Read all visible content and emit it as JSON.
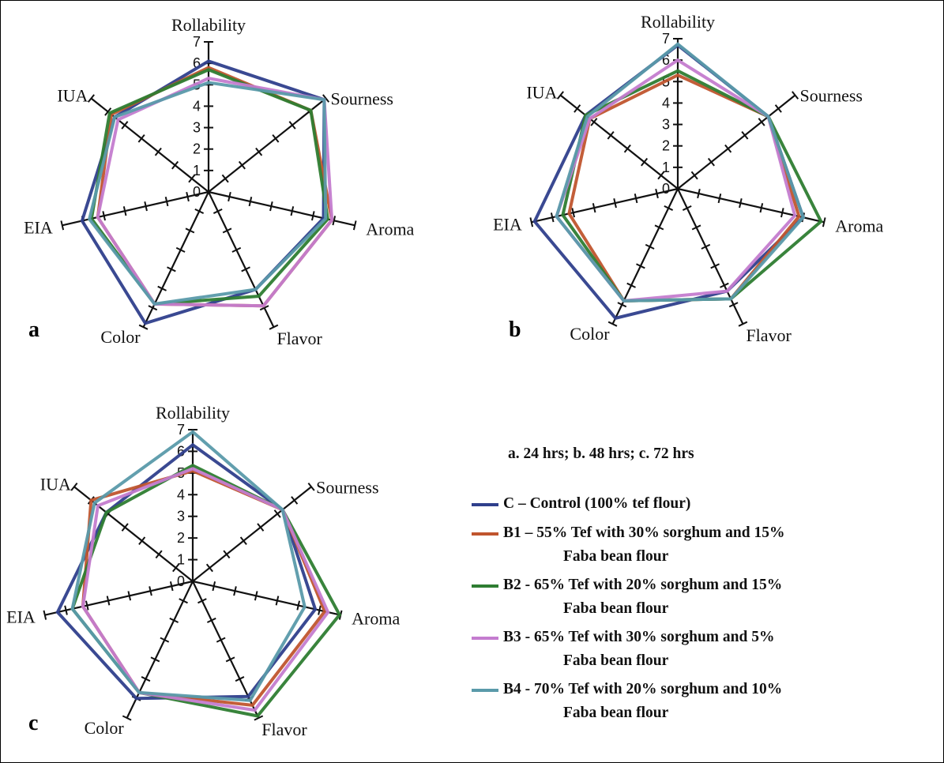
{
  "chart_data": [
    {
      "type": "radar",
      "panel_label": "a",
      "axes": [
        "Rollability",
        "Sourness",
        "Aroma",
        "Flavor",
        "Color",
        "EIA",
        "IUA"
      ],
      "rlim": [
        0,
        7
      ],
      "tick_labels": [
        "0",
        "1",
        "2",
        "3",
        "4",
        "5",
        "6",
        "7"
      ],
      "series": [
        {
          "name": "C",
          "values": [
            6.1,
            6.9,
            5.5,
            5.05,
            6.8,
            6.05,
            5.6
          ]
        },
        {
          "name": "B1",
          "values": [
            5.8,
            6.1,
            5.9,
            5.9,
            5.8,
            5.3,
            5.8
          ]
        },
        {
          "name": "B2",
          "values": [
            5.7,
            6.1,
            5.7,
            5.4,
            5.8,
            5.6,
            5.9
          ]
        },
        {
          "name": "B3",
          "values": [
            5.3,
            6.9,
            5.9,
            5.9,
            5.8,
            5.3,
            5.4
          ]
        },
        {
          "name": "B4",
          "values": [
            5.1,
            6.9,
            5.6,
            5.05,
            5.8,
            5.7,
            5.6
          ]
        }
      ]
    },
    {
      "type": "radar",
      "panel_label": "b",
      "axes": [
        "Rollability",
        "Sourness",
        "Aroma",
        "Flavor",
        "Color",
        "EIA",
        "IUA"
      ],
      "rlim": [
        0,
        7
      ],
      "tick_labels": [
        "0",
        "1",
        "2",
        "3",
        "4",
        "5",
        "6",
        "7"
      ],
      "series": [
        {
          "name": "C",
          "values": [
            6.7,
            5.4,
            6.0,
            5.3,
            6.7,
            6.85,
            5.5
          ]
        },
        {
          "name": "B1",
          "values": [
            5.3,
            5.4,
            5.8,
            5.7,
            5.8,
            5.2,
            5.25
          ]
        },
        {
          "name": "B2",
          "values": [
            5.5,
            5.4,
            6.85,
            5.7,
            5.8,
            5.5,
            5.5
          ]
        },
        {
          "name": "B3",
          "values": [
            6.0,
            5.4,
            5.6,
            5.3,
            5.8,
            5.8,
            5.25
          ]
        },
        {
          "name": "B4",
          "values": [
            6.75,
            5.4,
            6.0,
            5.7,
            5.8,
            5.8,
            5.4
          ]
        }
      ]
    },
    {
      "type": "radar",
      "panel_label": "c",
      "axes": [
        "Rollability",
        "Sourness",
        "Aroma",
        "Flavor",
        "Color",
        "EIA",
        "IUA"
      ],
      "rlim": [
        0,
        7
      ],
      "tick_labels": [
        "0",
        "1",
        "2",
        "3",
        "4",
        "5",
        "6",
        "7"
      ],
      "series": [
        {
          "name": "C",
          "values": [
            6.3,
            5.3,
            5.8,
            5.9,
            6.0,
            6.4,
            5.1
          ]
        },
        {
          "name": "B1",
          "values": [
            5.1,
            5.3,
            6.25,
            6.35,
            5.7,
            5.2,
            6.0
          ]
        },
        {
          "name": "B2",
          "values": [
            5.35,
            5.3,
            6.95,
            6.9,
            5.7,
            5.7,
            5.1
          ]
        },
        {
          "name": "B3",
          "values": [
            5.2,
            5.3,
            6.4,
            6.6,
            5.7,
            5.2,
            5.6
          ]
        },
        {
          "name": "B4",
          "values": [
            6.9,
            5.3,
            5.3,
            6.1,
            5.7,
            5.7,
            5.8
          ]
        }
      ]
    }
  ],
  "series_colors": {
    "C": "#2f3f8c",
    "B1": "#c0552e",
    "B2": "#2e7d32",
    "B3": "#c47ccf",
    "B4": "#5a9aaa"
  },
  "legend": {
    "title": "a. 24 hrs; b. 48 hrs; c. 72 hrs",
    "entries": [
      {
        "key": "C",
        "line1": "C – Control (100% tef flour)",
        "line2": ""
      },
      {
        "key": "B1",
        "line1": "B1 – 55% Tef with 30% sorghum and 15%",
        "line2": "Faba bean flour"
      },
      {
        "key": "B2",
        "line1": "B2 - 65% Tef with 20% sorghum and 15%",
        "line2": "Faba bean flour"
      },
      {
        "key": "B3",
        "line1": "B3 - 65% Tef with 30% sorghum and 5%",
        "line2": "Faba bean flour"
      },
      {
        "key": "B4",
        "line1": "B4 - 70% Tef with 20% sorghum and 10%",
        "line2": "Faba bean flour"
      }
    ]
  }
}
